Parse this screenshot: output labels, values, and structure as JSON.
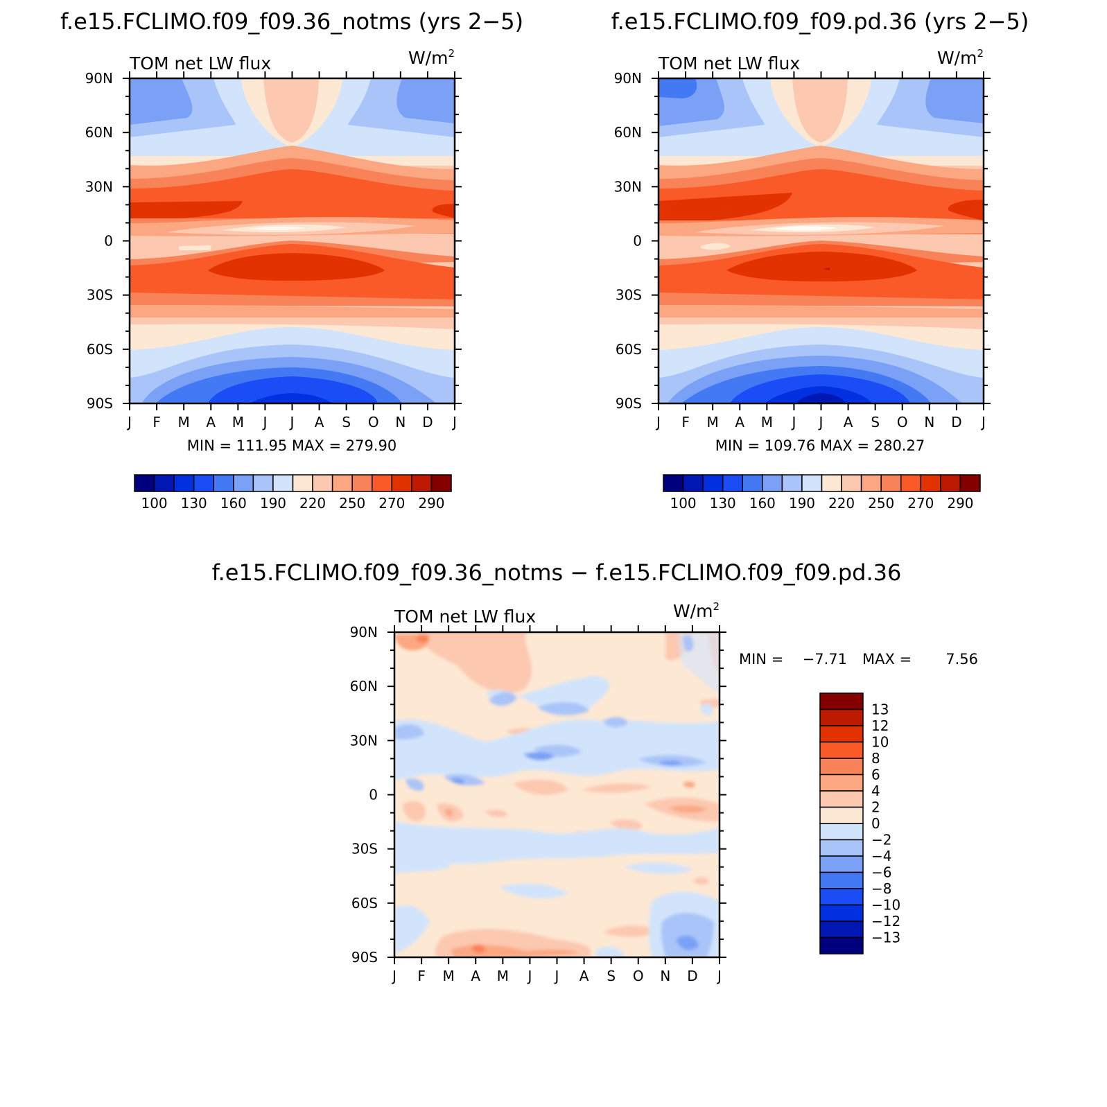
{
  "chart_data": [
    {
      "type": "heatmap",
      "title": "f.e15.FCLIMO.f09_f09.36_notms (yrs 2−5)",
      "left_label": "TOM net LW flux",
      "units_base": "W/m",
      "units_exp": "2",
      "x_ticks": [
        "J",
        "F",
        "M",
        "A",
        "M",
        "J",
        "J",
        "A",
        "S",
        "O",
        "N",
        "D",
        "J"
      ],
      "y_ticks": [
        "90N",
        "60N",
        "30N",
        "0",
        "30S",
        "60S",
        "90S"
      ],
      "stats": "MIN = 111.95 MAX = 279.90",
      "min": 111.95,
      "max": 279.9,
      "colorbar": {
        "orientation": "horizontal",
        "labels": [
          "100",
          "130",
          "160",
          "190",
          "220",
          "250",
          "270",
          "290"
        ],
        "colors": [
          "#00007f",
          "#0017b3",
          "#0030e0",
          "#1a4df5",
          "#4479f4",
          "#7aa1f6",
          "#a9c4f8",
          "#d2e4fb",
          "#fde8d4",
          "#fcc8b0",
          "#fba782",
          "#f98359",
          "#fa5a27",
          "#e23200",
          "#be1a02",
          "#840000"
        ]
      }
    },
    {
      "type": "heatmap",
      "title": "f.e15.FCLIMO.f09_f09.pd.36 (yrs 2−5)",
      "left_label": "TOM net LW flux",
      "units_base": "W/m",
      "units_exp": "2",
      "x_ticks": [
        "J",
        "F",
        "M",
        "A",
        "M",
        "J",
        "J",
        "A",
        "S",
        "O",
        "N",
        "D",
        "J"
      ],
      "y_ticks": [
        "90N",
        "60N",
        "30N",
        "0",
        "30S",
        "60S",
        "90S"
      ],
      "stats": "MIN = 109.76 MAX = 280.27",
      "min": 109.76,
      "max": 280.27,
      "colorbar": {
        "orientation": "horizontal",
        "labels": [
          "100",
          "130",
          "160",
          "190",
          "220",
          "250",
          "270",
          "290"
        ],
        "colors": [
          "#00007f",
          "#0017b3",
          "#0030e0",
          "#1a4df5",
          "#4479f4",
          "#7aa1f6",
          "#a9c4f8",
          "#d2e4fb",
          "#fde8d4",
          "#fcc8b0",
          "#fba782",
          "#f98359",
          "#fa5a27",
          "#e23200",
          "#be1a02",
          "#840000"
        ]
      }
    },
    {
      "type": "heatmap",
      "title": "f.e15.FCLIMO.f09_f09.36_notms − f.e15.FCLIMO.f09_f09.pd.36",
      "left_label": "TOM net LW flux",
      "units_base": "W/m",
      "units_exp": "2",
      "x_ticks": [
        "J",
        "F",
        "M",
        "A",
        "M",
        "J",
        "J",
        "A",
        "S",
        "O",
        "N",
        "D",
        "J"
      ],
      "y_ticks": [
        "90N",
        "60N",
        "30N",
        "0",
        "30S",
        "60S",
        "90S"
      ],
      "stats_min_label": "MIN =",
      "stats_min": "−7.71",
      "stats_max_label": "MAX =",
      "stats_max": "7.56",
      "min": -7.71,
      "max": 7.56,
      "colorbar": {
        "orientation": "vertical",
        "labels": [
          "13",
          "12",
          "10",
          "8",
          "6",
          "4",
          "2",
          "0",
          "−2",
          "−4",
          "−6",
          "−8",
          "−10",
          "−12",
          "−13"
        ],
        "colors": [
          "#840000",
          "#be1a02",
          "#e23200",
          "#fa5a27",
          "#f98359",
          "#fba782",
          "#fcc8b0",
          "#fde8d4",
          "#d2e4fb",
          "#a9c4f8",
          "#7aa1f6",
          "#4479f4",
          "#1a4df5",
          "#0030e0",
          "#0017b3",
          "#00007f"
        ]
      }
    }
  ]
}
